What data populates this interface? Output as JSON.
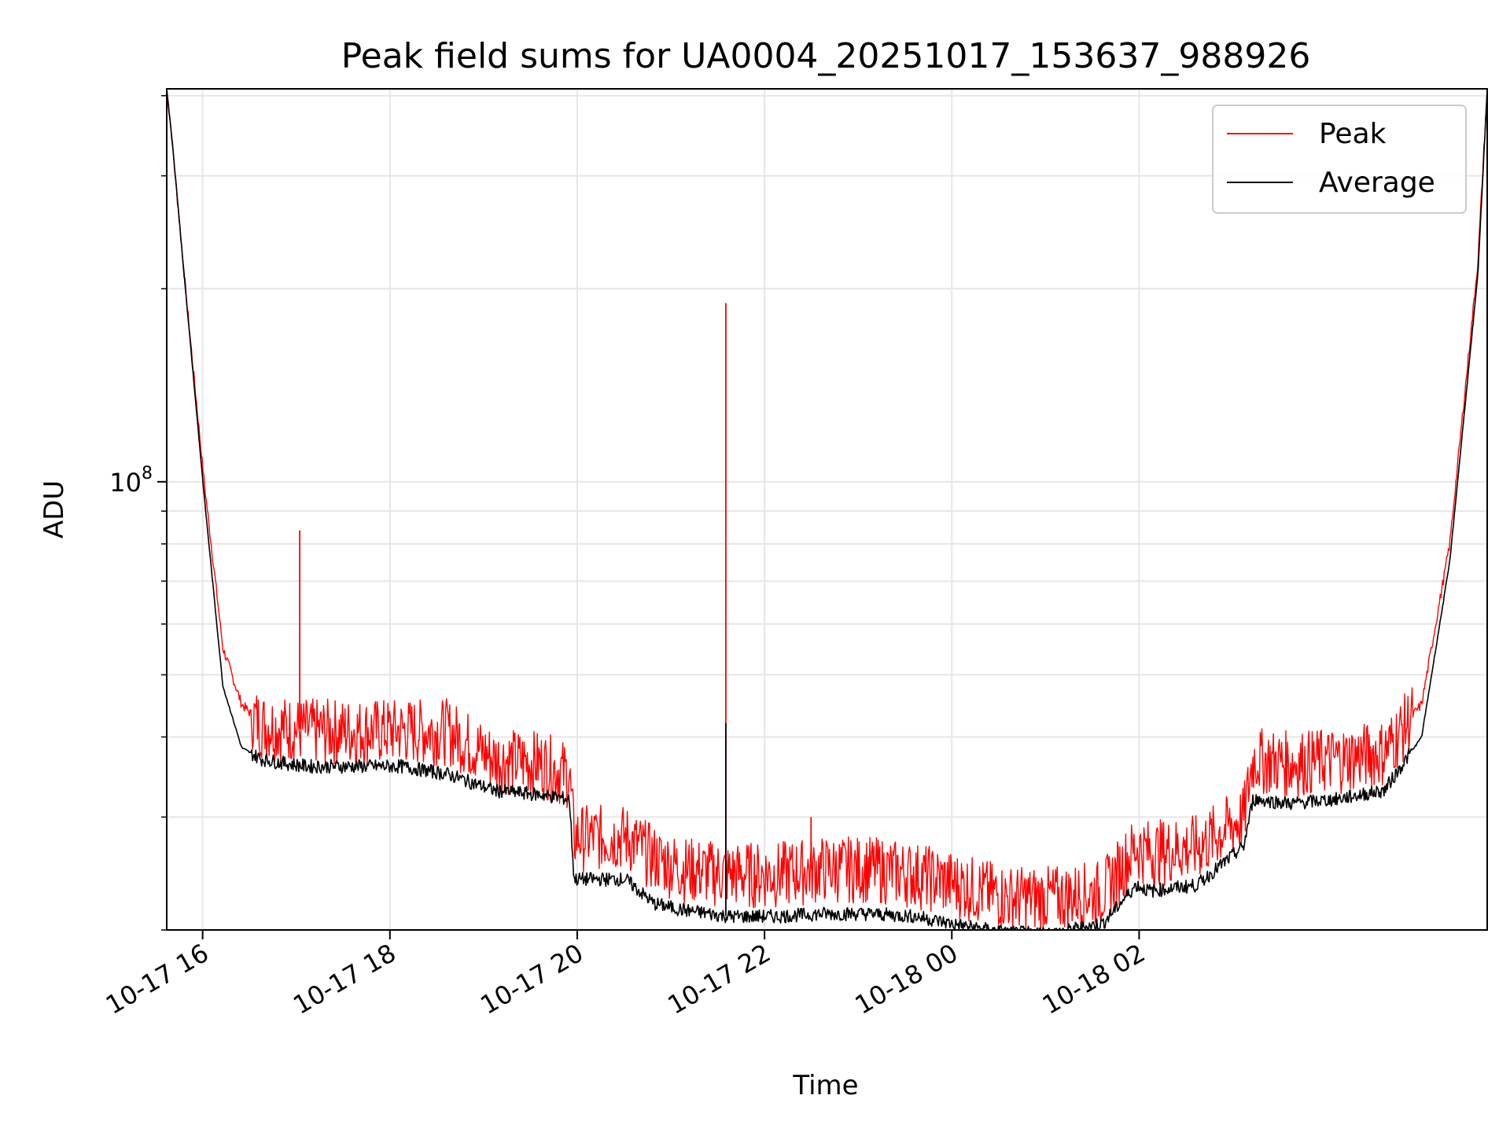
{
  "chart_data": {
    "type": "line",
    "title": "Peak field sums for UA0004_20251017_153637_988926",
    "xlabel": "Time",
    "ylabel": "ADU",
    "yscale": "log",
    "x_hours_from_start": [
      0,
      0.05,
      0.2,
      0.4,
      0.6,
      0.8,
      1.0,
      1.2,
      1.5,
      2.0,
      2.5,
      3.0,
      3.5,
      4.0,
      4.3,
      4.35,
      4.9,
      5.2,
      5.5,
      6.0,
      6.5,
      7.0,
      7.5,
      8.0,
      8.5,
      9.0,
      9.5,
      10.0,
      10.35,
      10.5,
      11.0,
      11.5,
      11.6,
      12.0,
      12.5,
      13.0,
      13.4,
      13.7,
      14.0,
      14.1
    ],
    "x_start": "2025-10-17 15:37",
    "x_ticks": [
      "10-17 16",
      "10-17 18",
      "10-17 20",
      "10-17 22",
      "10-18 00",
      "10-18 02"
    ],
    "ylim": [
      20000000,
      410000000
    ],
    "y_tick_label": "10^8",
    "legend": [
      "Peak",
      "Average"
    ],
    "legend_position": "upper right",
    "grid": true,
    "series": [
      {
        "name": "Peak",
        "color": "#ff0000",
        "values": [
          410000000,
          350000000,
          200000000,
          100000000,
          55000000,
          45000000,
          42000000,
          41500000,
          41000000,
          41000000,
          41000000,
          41000000,
          37000000,
          36500000,
          35000000,
          28000000,
          28000000,
          26000000,
          25000000,
          24500000,
          24500000,
          25000000,
          25000000,
          24500000,
          23500000,
          22500000,
          22500000,
          23000000,
          27000000,
          26500000,
          27000000,
          30000000,
          37000000,
          36500000,
          37000000,
          38000000,
          45000000,
          80000000,
          220000000,
          410000000
        ]
      },
      {
        "name": "Average",
        "color": "#000000",
        "values": [
          410000000,
          350000000,
          200000000,
          95000000,
          48000000,
          38500000,
          37000000,
          36500000,
          36000000,
          36000000,
          36000000,
          35000000,
          33000000,
          32500000,
          32000000,
          24000000,
          24000000,
          22000000,
          21500000,
          21000000,
          21000000,
          21200000,
          21200000,
          21000000,
          20300000,
          19800000,
          19800000,
          20500000,
          23500000,
          23000000,
          23500000,
          27000000,
          32000000,
          31500000,
          32000000,
          33000000,
          40000000,
          75000000,
          210000000,
          410000000
        ]
      }
    ],
    "annotations": [
      {
        "series": "Peak",
        "x_hours_from_start": 1.42,
        "value": 84000000
      },
      {
        "series": "Peak",
        "x_hours_from_start": 5.97,
        "value": 190000000
      },
      {
        "series": "Average",
        "x_hours_from_start": 5.97,
        "value": 42000000
      },
      {
        "series": "Peak",
        "x_hours_from_start": 6.88,
        "value": 30000000
      }
    ]
  }
}
